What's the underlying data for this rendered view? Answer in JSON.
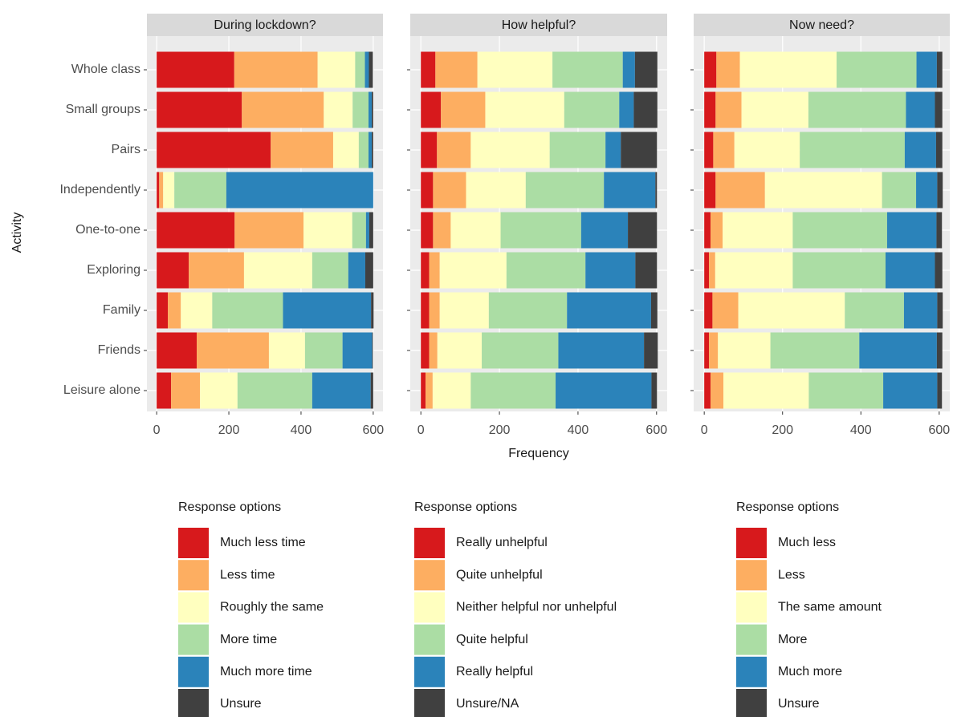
{
  "chart_data": [
    {
      "type": "bar",
      "orientation": "horizontal",
      "stacked": true,
      "title": "During lockdown?",
      "y_label": "Activity",
      "categories": [
        "Whole class",
        "Small groups",
        "Pairs",
        "Independently",
        "One-to-one",
        "Exploring",
        "Family",
        "Friends",
        "Leisure alone"
      ],
      "xlim": [
        -27,
        627
      ],
      "xticks": [
        0,
        200,
        400,
        600
      ],
      "grid": true,
      "legend_title": "Response options",
      "series": [
        {
          "name": "Much less time",
          "color": "#d7191c",
          "values": [
            215,
            236,
            316,
            7,
            216,
            89,
            31,
            111,
            40
          ]
        },
        {
          "name": "Less time",
          "color": "#fdae61",
          "values": [
            231,
            227,
            173,
            11,
            191,
            153,
            36,
            200,
            80
          ]
        },
        {
          "name": "Roughly the same",
          "color": "#ffffbf",
          "values": [
            104,
            80,
            71,
            31,
            135,
            189,
            87,
            100,
            104
          ]
        },
        {
          "name": "More time",
          "color": "#abdda4",
          "values": [
            27,
            44,
            27,
            144,
            38,
            100,
            196,
            104,
            207
          ]
        },
        {
          "name": "Much more time",
          "color": "#2b83ba",
          "values": [
            11,
            9,
            9,
            407,
            9,
            47,
            244,
            82,
            162
          ]
        },
        {
          "name": "Unsure",
          "color": "#404040",
          "values": [
            11,
            4,
            4,
            0,
            11,
            22,
            7,
            2,
            7
          ]
        }
      ]
    },
    {
      "type": "bar",
      "orientation": "horizontal",
      "stacked": true,
      "title": "How helpful?",
      "x_label": "Frequency",
      "xlim": [
        -27,
        627
      ],
      "xticks": [
        0,
        200,
        400,
        600
      ],
      "grid": true,
      "legend_title": "Response options",
      "series": [
        {
          "name": "Really unhelpful",
          "color": "#d7191c",
          "values": [
            37,
            51,
            41,
            31,
            31,
            21,
            21,
            21,
            12
          ]
        },
        {
          "name": "Quite unhelpful",
          "color": "#fdae61",
          "values": [
            107,
            113,
            86,
            84,
            45,
            27,
            27,
            21,
            18
          ]
        },
        {
          "name": "Neither helpful nor unhelpful",
          "color": "#ffffbf",
          "values": [
            191,
            201,
            201,
            152,
            127,
            170,
            125,
            113,
            97
          ]
        },
        {
          "name": "Quite helpful",
          "color": "#abdda4",
          "values": [
            179,
            140,
            142,
            199,
            205,
            201,
            199,
            195,
            216
          ]
        },
        {
          "name": "Really helpful",
          "color": "#2b83ba",
          "values": [
            31,
            37,
            39,
            131,
            119,
            127,
            214,
            218,
            244
          ]
        },
        {
          "name": "Unsure/NA",
          "color": "#404040",
          "values": [
            57,
            60,
            92,
            4,
            74,
            55,
            16,
            35,
            14
          ]
        }
      ]
    },
    {
      "type": "bar",
      "orientation": "horizontal",
      "stacked": true,
      "title": "Now need?",
      "xlim": [
        -27,
        627
      ],
      "xticks": [
        0,
        200,
        400,
        600
      ],
      "grid": true,
      "legend_title": "Response options",
      "series": [
        {
          "name": "Much less",
          "color": "#d7191c",
          "values": [
            31,
            29,
            23,
            29,
            16,
            12,
            21,
            12,
            16
          ]
        },
        {
          "name": "Less",
          "color": "#fdae61",
          "values": [
            60,
            66,
            54,
            126,
            31,
            16,
            66,
            23,
            33
          ]
        },
        {
          "name": "The same amount",
          "color": "#ffffbf",
          "values": [
            247,
            171,
            167,
            299,
            179,
            198,
            272,
            134,
            218
          ]
        },
        {
          "name": "More",
          "color": "#abdda4",
          "values": [
            204,
            249,
            268,
            87,
            241,
            237,
            151,
            227,
            190
          ]
        },
        {
          "name": "Much more",
          "color": "#2b83ba",
          "values": [
            52,
            74,
            80,
            54,
            126,
            126,
            85,
            198,
            138
          ]
        },
        {
          "name": "Unsure",
          "color": "#404040",
          "values": [
            14,
            19,
            16,
            14,
            14,
            19,
            14,
            14,
            12
          ]
        }
      ]
    }
  ]
}
